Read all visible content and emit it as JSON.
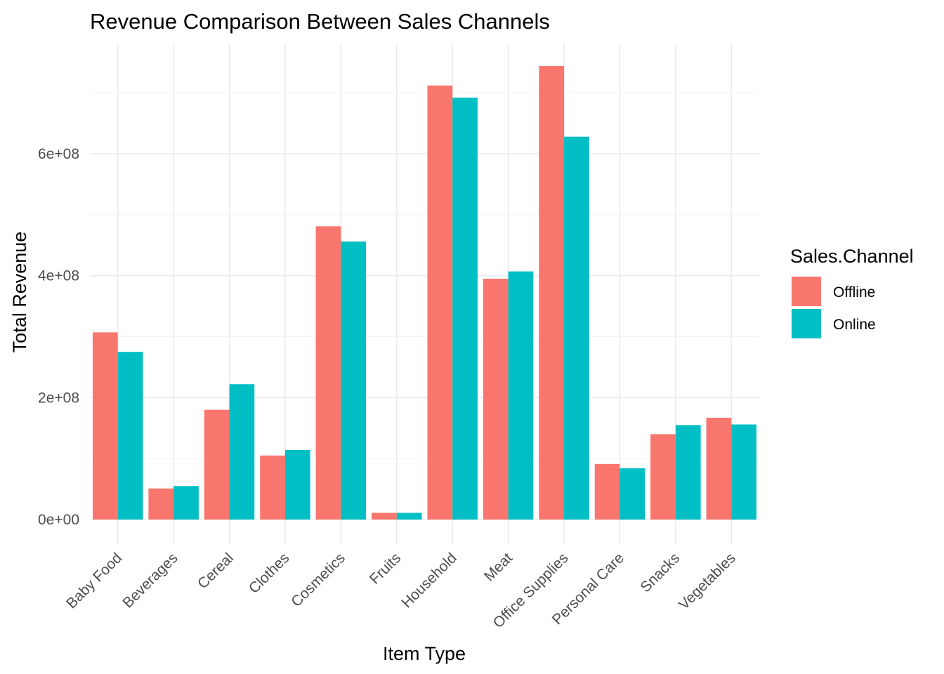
{
  "chart_data": {
    "type": "bar",
    "title": "Revenue Comparison Between Sales Channels",
    "xlabel": "Item Type",
    "ylabel": "Total Revenue",
    "categories": [
      "Baby Food",
      "Beverages",
      "Cereal",
      "Clothes",
      "Cosmetics",
      "Fruits",
      "Household",
      "Meat",
      "Office Supplies",
      "Personal Care",
      "Snacks",
      "Vegetables"
    ],
    "series": [
      {
        "name": "Offline",
        "color": "#f8766d",
        "values": [
          307000000,
          51000000,
          180000000,
          105000000,
          481000000,
          11000000,
          712000000,
          395000000,
          744000000,
          91000000,
          140000000,
          167000000
        ]
      },
      {
        "name": "Online",
        "color": "#00bfc4",
        "values": [
          275000000,
          55000000,
          222000000,
          114000000,
          456000000,
          11000000,
          692000000,
          407000000,
          628000000,
          84000000,
          155000000,
          156000000
        ]
      }
    ],
    "ylim": [
      0,
      780000000
    ],
    "yticks": [
      0,
      200000000,
      400000000,
      600000000
    ],
    "ytick_labels": [
      "0e+00",
      "2e+08",
      "4e+08",
      "6e+08"
    ],
    "grid": true,
    "legend": {
      "title": "Sales.Channel",
      "placement": "right"
    }
  }
}
